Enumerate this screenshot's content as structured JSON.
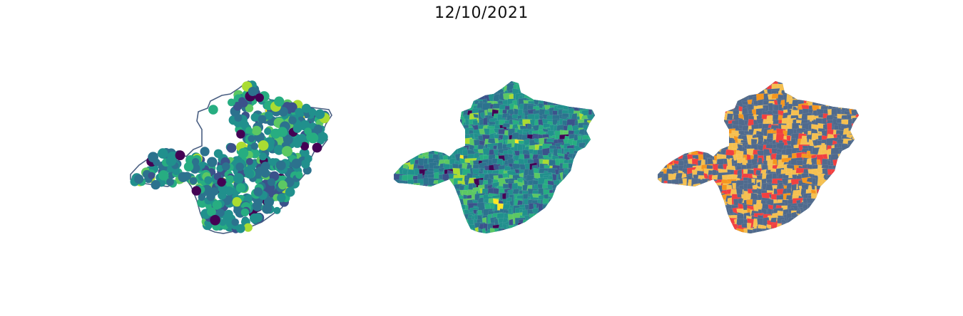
{
  "title": "12/10/2021",
  "colors": {
    "outline": "#4a5f82",
    "viridis": [
      "#440154",
      "#3b528b",
      "#2c728e",
      "#21908d",
      "#27ad81",
      "#5cc863",
      "#aadc32",
      "#fde725"
    ],
    "risk": {
      "base": "#4f6a8d",
      "high": "#f5c050",
      "very_high": "#f5961e",
      "critical": "#f24040"
    }
  },
  "panels": [
    {
      "name": "points-map"
    },
    {
      "name": "choropleth-map"
    },
    {
      "name": "risk-map"
    }
  ]
}
